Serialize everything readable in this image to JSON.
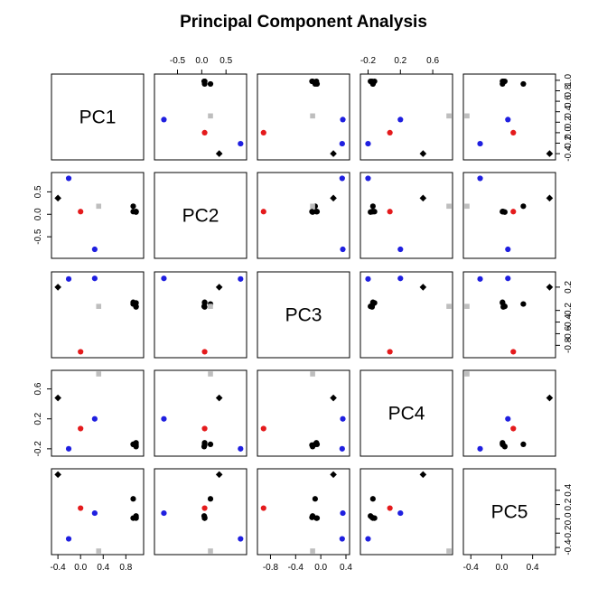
{
  "chart_data": {
    "type": "scatter",
    "title": "Principal Component Analysis",
    "variables": [
      "PC1",
      "PC2",
      "PC3",
      "PC4",
      "PC5"
    ],
    "colors": {
      "black": "#000000",
      "red": "#e41a1c",
      "blue": "#1f1fe0",
      "gray": "#bebebe"
    },
    "ranges": [
      [
        -0.45,
        1.05
      ],
      [
        -0.9,
        0.85
      ],
      [
        -0.95,
        0.4
      ],
      [
        -0.25,
        0.8
      ],
      [
        -0.45,
        0.65
      ]
    ],
    "ticks": [
      [
        -0.4,
        0.0,
        0.4,
        0.8
      ],
      [
        -0.5,
        0.0,
        0.5
      ],
      [
        -0.8,
        -0.4,
        0.0,
        0.4
      ],
      [
        -0.2,
        0.2,
        0.6
      ],
      [
        -0.4,
        0.0,
        0.4
      ]
    ],
    "tick_labels": [
      [
        "-0.4",
        "0.0",
        "0.4",
        "0.8"
      ],
      [
        "-0.5",
        "0.0",
        "0.5"
      ],
      [
        "-0.8",
        "-0.4",
        "0.0",
        "0.4"
      ],
      [
        "-0.2",
        "0.2",
        "0.6"
      ],
      [
        "-0.4",
        "0.0",
        "0.4"
      ]
    ],
    "axis_ticks": {
      "top": [
        [],
        [
          -0.5,
          0.0,
          0.5
        ],
        [],
        [
          -0.2,
          0.2,
          0.6
        ],
        []
      ],
      "bottom": [
        [
          -0.4,
          0.0,
          0.4,
          0.8
        ],
        [],
        [
          -0.8,
          -0.4,
          0.0,
          0.4
        ],
        [],
        [
          -0.4,
          0.0,
          0.4
        ]
      ],
      "left": [
        [],
        [
          -0.5,
          0.0,
          0.5
        ],
        [],
        [
          -0.2,
          0.2,
          0.6
        ],
        []
      ],
      "right": [
        [
          1.0,
          0.8,
          0.6,
          0.4,
          0.2,
          0.0,
          -0.2,
          -0.4
        ],
        [],
        [
          0.2,
          -0.2,
          -0.4,
          -0.6,
          -0.8
        ],
        [],
        [
          0.4,
          0.2,
          0.0,
          -0.2,
          -0.4
        ]
      ]
    },
    "axis_tick_labels": {
      "top": [
        [],
        [
          "-0.5",
          "0.0",
          "0.5"
        ],
        [],
        [
          "-0.2",
          "0.2",
          "0.6"
        ],
        []
      ],
      "bottom": [
        [
          "-0.4",
          "0.0",
          "0.4",
          "0.8"
        ],
        [],
        [
          "-0.8",
          "-0.4",
          "0.0",
          "0.4"
        ],
        [],
        [
          "-0.4",
          "0.0",
          "0.4"
        ]
      ],
      "left": [
        [],
        [
          "-0.5",
          "0.0",
          "0.5"
        ],
        [],
        [
          "-0.2",
          "0.2",
          "0.6"
        ],
        []
      ],
      "right": [
        [
          "1.0",
          "0.8",
          "0.6",
          "0.4",
          "0.2",
          "0.0",
          "-0.2",
          "-0.4"
        ],
        [],
        [
          "0.2",
          "-0.2",
          "-0.4",
          "-0.6",
          "-0.8"
        ],
        [],
        [
          "0.4",
          "0.2",
          "0.0",
          "-0.2",
          "-0.4"
        ]
      ]
    },
    "points": [
      {
        "pc": [
          0.93,
          0.18,
          -0.09,
          -0.14,
          0.28
        ],
        "color": "black",
        "shape": "circle"
      },
      {
        "pc": [
          0.98,
          0.06,
          -0.14,
          -0.15,
          0.02
        ],
        "color": "black",
        "shape": "circle"
      },
      {
        "pc": [
          0.98,
          0.05,
          -0.13,
          -0.17,
          0.04
        ],
        "color": "black",
        "shape": "circle"
      },
      {
        "pc": [
          0.98,
          0.06,
          -0.07,
          -0.12,
          0.01
        ],
        "color": "black",
        "shape": "circle"
      },
      {
        "pc": [
          0.93,
          0.06,
          -0.06,
          -0.14,
          0.01
        ],
        "color": "black",
        "shape": "circle"
      },
      {
        "pc": [
          -0.4,
          0.36,
          0.2,
          0.48,
          0.62
        ],
        "color": "black",
        "shape": "diamond"
      },
      {
        "pc": [
          0.0,
          0.06,
          -0.91,
          0.07,
          0.15
        ],
        "color": "red",
        "shape": "circle"
      },
      {
        "pc": [
          -0.21,
          0.8,
          0.34,
          -0.2,
          -0.28
        ],
        "color": "blue",
        "shape": "circle"
      },
      {
        "pc": [
          0.25,
          -0.78,
          0.35,
          0.2,
          0.08
        ],
        "color": "blue",
        "shape": "circle"
      },
      {
        "pc": [
          0.32,
          0.18,
          -0.13,
          0.8,
          -0.45
        ],
        "color": "gray",
        "shape": "square"
      }
    ]
  }
}
